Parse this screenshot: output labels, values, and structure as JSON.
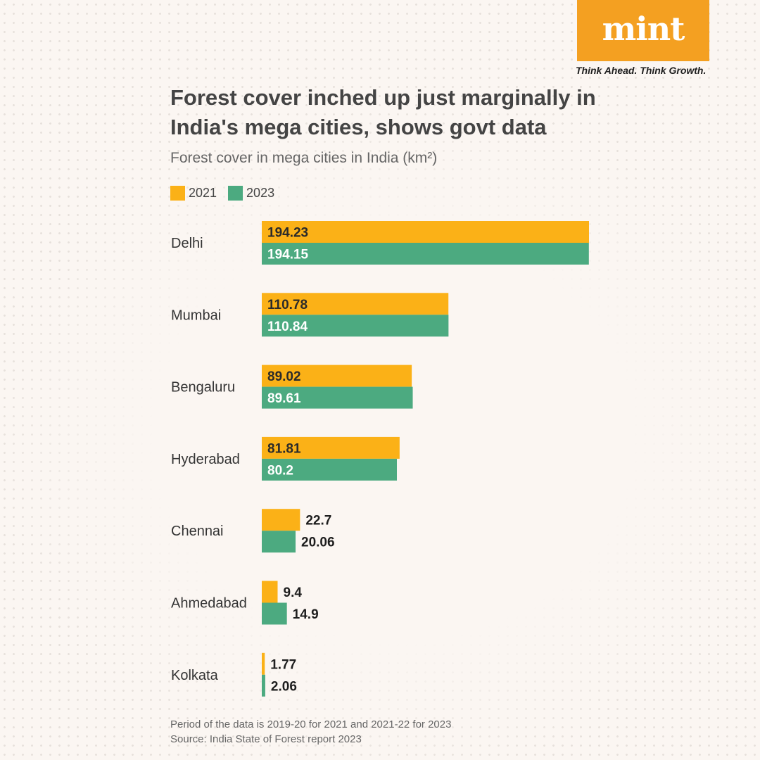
{
  "brand": {
    "logo": "mint",
    "tagline": "Think Ahead. Think Growth.",
    "logo_color": "#f4a021"
  },
  "title": "Forest cover inched up just marginally in India's mega cities, shows govt data",
  "subtitle": "Forest cover in mega cities in India (km²)",
  "footnotes": {
    "period": "Period of the data is 2019-20 for 2021 and 2021-22 for 2023",
    "source": "Source: India State of Forest report 2023"
  },
  "chart_data": {
    "type": "bar",
    "orientation": "horizontal",
    "categories": [
      "Delhi",
      "Mumbai",
      "Bengaluru",
      "Hyderabad",
      "Chennai",
      "Ahmedabad",
      "Kolkata"
    ],
    "series": [
      {
        "name": "2021",
        "color": "#fbb117",
        "values": [
          194.23,
          110.78,
          89.02,
          81.81,
          22.7,
          9.4,
          1.77
        ],
        "labels": [
          "194.23",
          "110.78",
          "89.02",
          "81.81",
          "22.7",
          "9.4",
          "1.77"
        ]
      },
      {
        "name": "2023",
        "color": "#4caa80",
        "values": [
          194.15,
          110.84,
          89.61,
          80.2,
          20.06,
          14.9,
          2.06
        ],
        "labels": [
          "194.15",
          "110.84",
          "89.61",
          "80.2",
          "20.06",
          "14.9",
          "2.06"
        ]
      }
    ],
    "xlim": [
      0,
      194.23
    ],
    "legend_position": "top-left",
    "grid": false
  }
}
